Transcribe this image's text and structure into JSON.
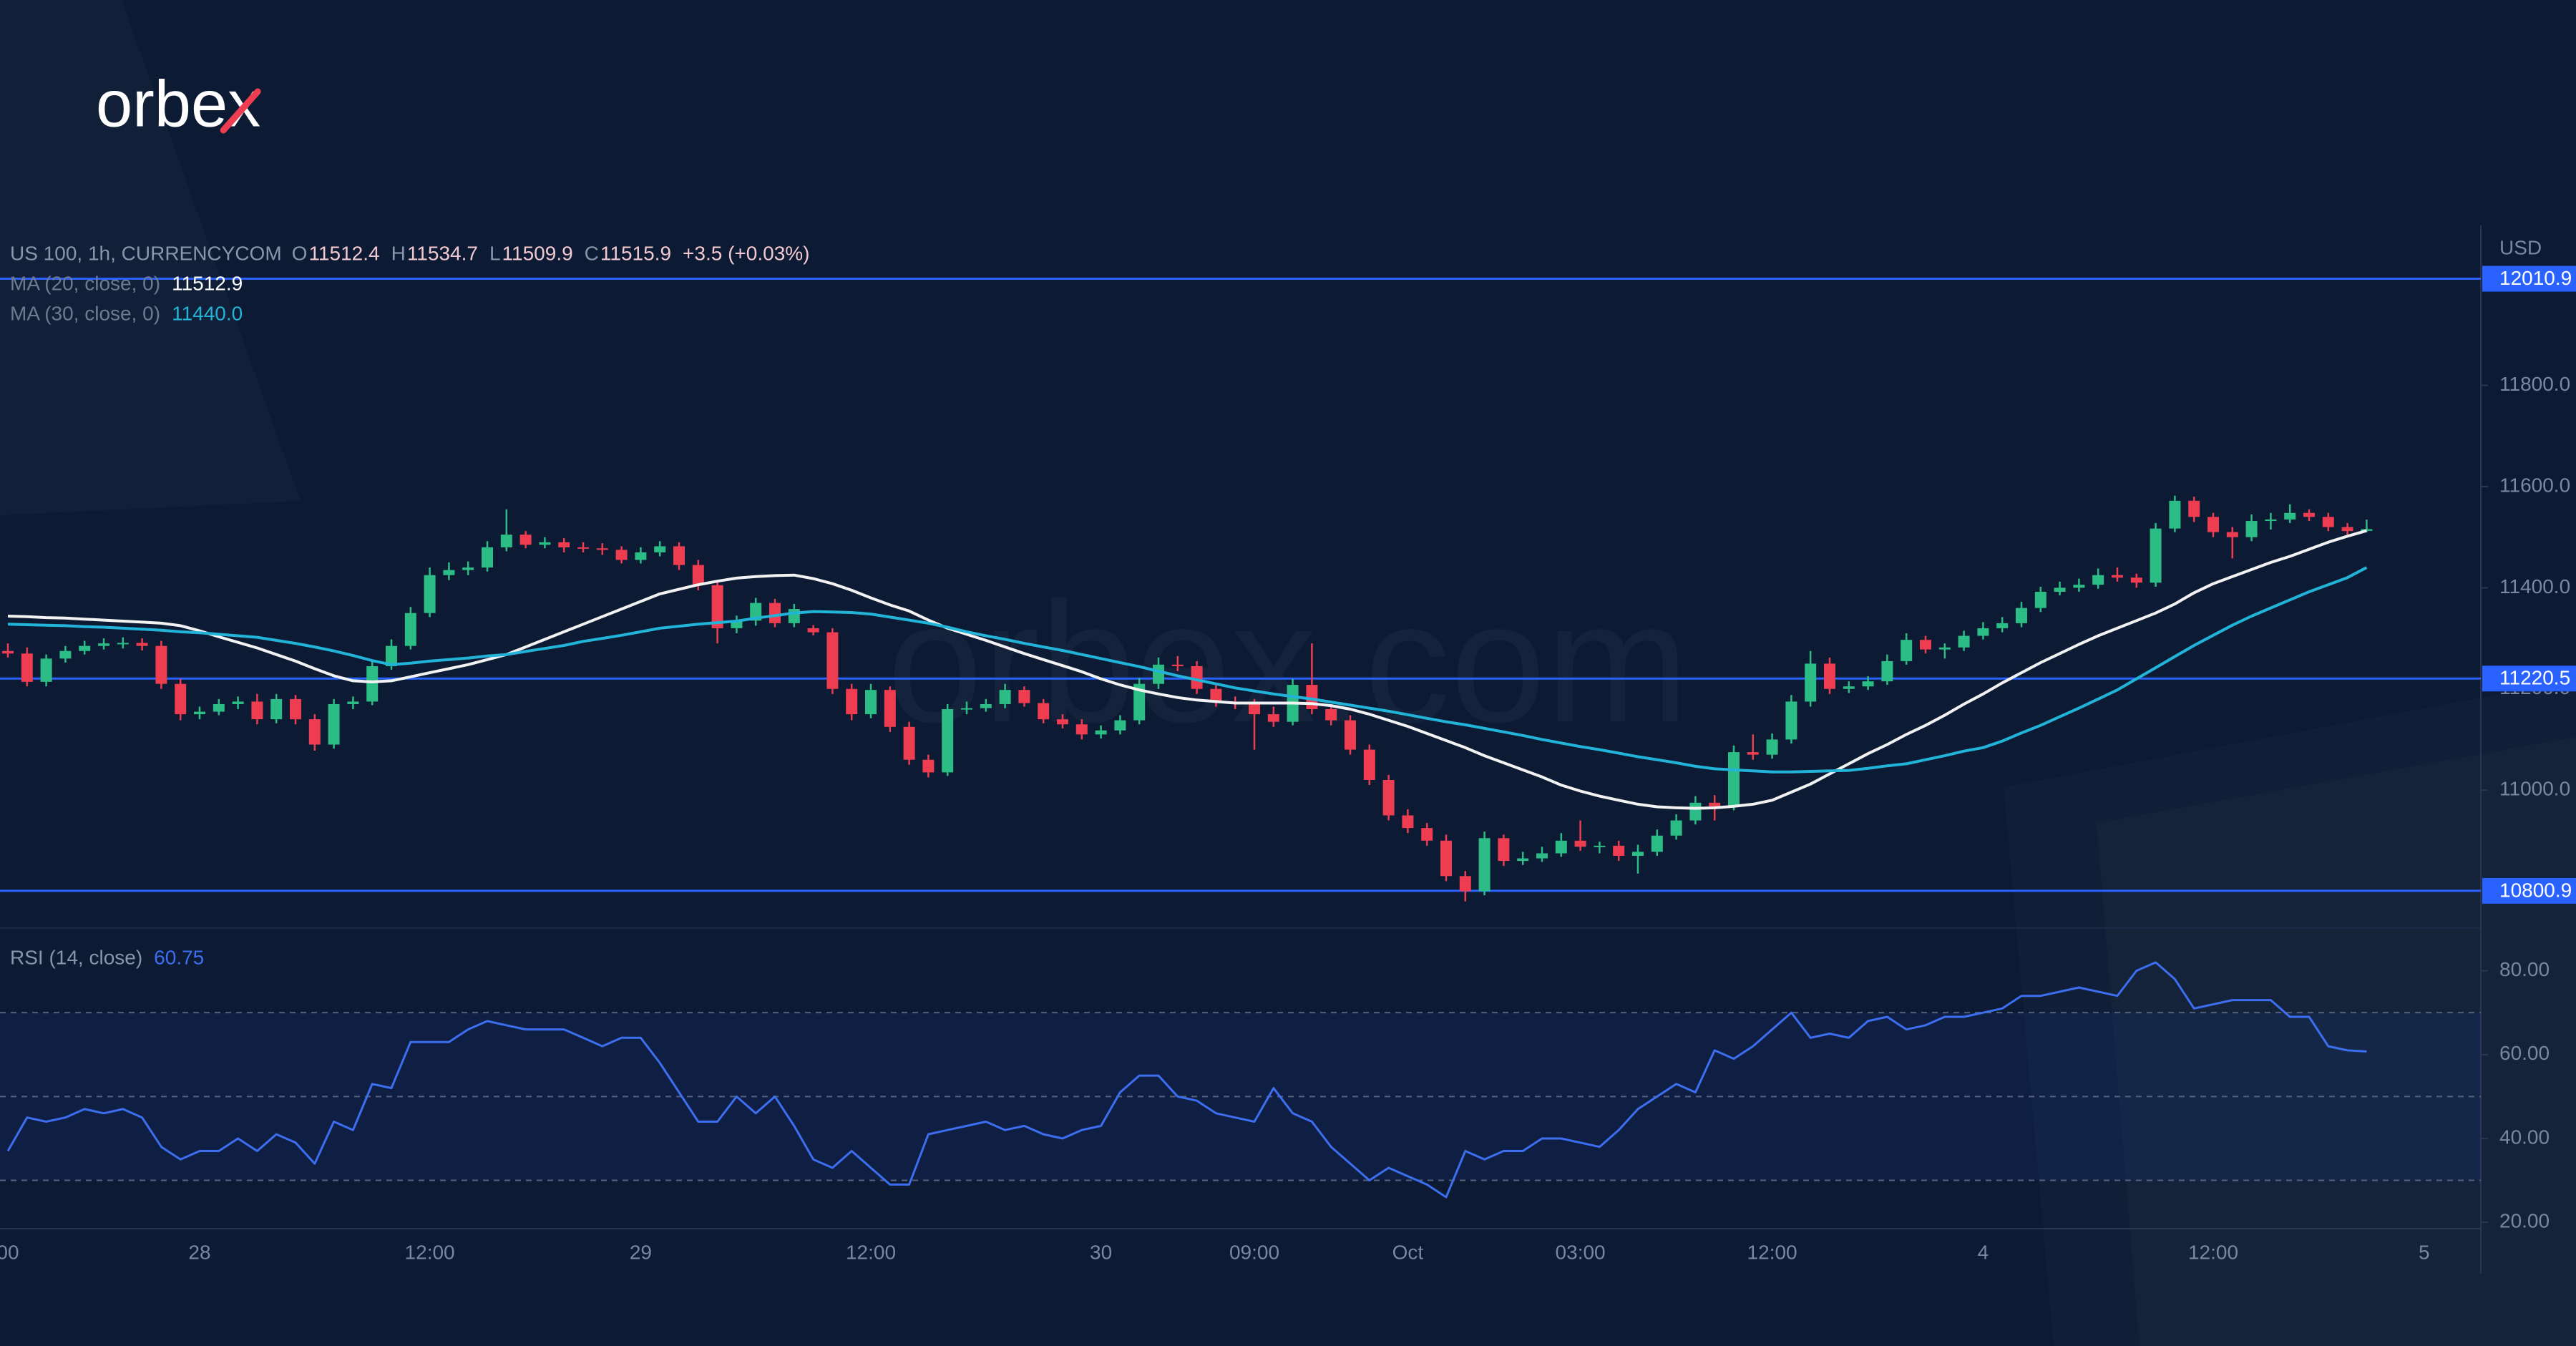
{
  "brand": "orbex",
  "watermark": "orbex.com",
  "chart_data": {
    "type": "candlestick",
    "symbol": "US 100, 1h, CURRENCYCOM",
    "ohlc_letters": [
      "O",
      "H",
      "L",
      "C"
    ],
    "change": "+3.5 (+0.03%)",
    "up_color": "#2bbd85",
    "down_color": "#ee3d50",
    "y_axis_label": "USD",
    "ylim": [
      10730,
      12105
    ],
    "yticks": [
      {
        "value": 11000,
        "label": "11000.0"
      },
      {
        "value": 11200,
        "label": "11200.0"
      },
      {
        "value": 11400,
        "label": "11400.0"
      },
      {
        "value": 11600,
        "label": "11600.0"
      },
      {
        "value": 11800,
        "label": "11800.0"
      }
    ],
    "levels": [
      12010.9,
      11220.5,
      10800.9
    ],
    "level_color": "#2962ff",
    "categories": [
      "00",
      null,
      null,
      null,
      null,
      null,
      null,
      null,
      null,
      null,
      "28",
      null,
      null,
      null,
      null,
      null,
      null,
      null,
      null,
      null,
      null,
      null,
      "12:00",
      null,
      null,
      null,
      null,
      null,
      null,
      null,
      null,
      null,
      null,
      "29",
      null,
      null,
      null,
      null,
      null,
      null,
      null,
      null,
      null,
      null,
      null,
      "12:00",
      null,
      null,
      null,
      null,
      null,
      null,
      null,
      null,
      null,
      null,
      null,
      "30",
      null,
      null,
      null,
      null,
      null,
      null,
      null,
      "09:00",
      null,
      null,
      null,
      null,
      null,
      null,
      null,
      "Oct",
      null,
      null,
      null,
      null,
      null,
      null,
      null,
      null,
      "03:00",
      null,
      null,
      null,
      null,
      null,
      null,
      null,
      null,
      null,
      "12:00",
      null,
      null,
      null,
      null,
      null,
      null,
      null,
      null,
      null,
      null,
      "4",
      null,
      null,
      null,
      null,
      null,
      null,
      null,
      null,
      null,
      null,
      null,
      "12:00",
      null,
      null,
      null,
      null,
      null,
      null,
      null,
      null,
      null,
      null,
      "5"
    ],
    "ohlc": [
      [
        11275,
        11290,
        11262,
        11270
      ],
      [
        11270,
        11282,
        11205,
        11214
      ],
      [
        11214,
        11268,
        11205,
        11260
      ],
      [
        11260,
        11285,
        11252,
        11275
      ],
      [
        11275,
        11295,
        11268,
        11285
      ],
      [
        11285,
        11300,
        11278,
        11290
      ],
      [
        11290,
        11302,
        11280,
        11291
      ],
      [
        11291,
        11300,
        11276,
        11285
      ],
      [
        11285,
        11295,
        11200,
        11210
      ],
      [
        11210,
        11220,
        11138,
        11150
      ],
      [
        11150,
        11165,
        11140,
        11155
      ],
      [
        11155,
        11180,
        11148,
        11170
      ],
      [
        11170,
        11185,
        11160,
        11175
      ],
      [
        11175,
        11190,
        11130,
        11140
      ],
      [
        11140,
        11190,
        11132,
        11180
      ],
      [
        11180,
        11188,
        11130,
        11140
      ],
      [
        11140,
        11150,
        11078,
        11090
      ],
      [
        11090,
        11180,
        11082,
        11170
      ],
      [
        11170,
        11185,
        11160,
        11175
      ],
      [
        11175,
        11255,
        11168,
        11245
      ],
      [
        11245,
        11298,
        11238,
        11285
      ],
      [
        11285,
        11362,
        11278,
        11350
      ],
      [
        11350,
        11440,
        11342,
        11425
      ],
      [
        11425,
        11450,
        11415,
        11435
      ],
      [
        11435,
        11452,
        11425,
        11440
      ],
      [
        11440,
        11492,
        11432,
        11480
      ],
      [
        11480,
        11555,
        11472,
        11505
      ],
      [
        11505,
        11512,
        11478,
        11485
      ],
      [
        11485,
        11500,
        11478,
        11490
      ],
      [
        11490,
        11498,
        11470,
        11480
      ],
      [
        11480,
        11490,
        11470,
        11478
      ],
      [
        11478,
        11488,
        11465,
        11475
      ],
      [
        11475,
        11482,
        11448,
        11455
      ],
      [
        11455,
        11480,
        11448,
        11470
      ],
      [
        11470,
        11492,
        11462,
        11482
      ],
      [
        11482,
        11490,
        11435,
        11445
      ],
      [
        11445,
        11455,
        11395,
        11405
      ],
      [
        11405,
        11412,
        11290,
        11320
      ],
      [
        11320,
        11345,
        11310,
        11335
      ],
      [
        11335,
        11380,
        11325,
        11370
      ],
      [
        11370,
        11378,
        11322,
        11330
      ],
      [
        11330,
        11368,
        11322,
        11358
      ],
      [
        11320,
        11326,
        11306,
        11312
      ],
      [
        11312,
        11320,
        11190,
        11200
      ],
      [
        11200,
        11210,
        11138,
        11150
      ],
      [
        11150,
        11210,
        11142,
        11198
      ],
      [
        11198,
        11205,
        11115,
        11125
      ],
      [
        11125,
        11135,
        11050,
        11060
      ],
      [
        11060,
        11070,
        11025,
        11035
      ],
      [
        11035,
        11170,
        11028,
        11160
      ],
      [
        11160,
        11175,
        11150,
        11162
      ],
      [
        11162,
        11180,
        11155,
        11170
      ],
      [
        11170,
        11210,
        11162,
        11198
      ],
      [
        11198,
        11205,
        11165,
        11172
      ],
      [
        11172,
        11180,
        11132,
        11140
      ],
      [
        11140,
        11150,
        11122,
        11130
      ],
      [
        11130,
        11140,
        11100,
        11110
      ],
      [
        11110,
        11128,
        11102,
        11118
      ],
      [
        11118,
        11148,
        11110,
        11138
      ],
      [
        11138,
        11222,
        11130,
        11210
      ],
      [
        11210,
        11262,
        11200,
        11248
      ],
      [
        11248,
        11265,
        11235,
        11245
      ],
      [
        11245,
        11255,
        11190,
        11200
      ],
      [
        11200,
        11210,
        11165,
        11175
      ],
      [
        11175,
        11185,
        11160,
        11170
      ],
      [
        11170,
        11180,
        11080,
        11150
      ],
      [
        11150,
        11165,
        11125,
        11135
      ],
      [
        11135,
        11220,
        11128,
        11208
      ],
      [
        11208,
        11290,
        11150,
        11160
      ],
      [
        11160,
        11170,
        11128,
        11138
      ],
      [
        11138,
        11148,
        11070,
        11080
      ],
      [
        11080,
        11090,
        11010,
        11020
      ],
      [
        11020,
        11030,
        10940,
        10950
      ],
      [
        10950,
        10962,
        10915,
        10925
      ],
      [
        10925,
        10935,
        10890,
        10900
      ],
      [
        10900,
        10912,
        10820,
        10830
      ],
      [
        10830,
        10840,
        10780,
        10800
      ],
      [
        10800,
        10918,
        10792,
        10905
      ],
      [
        10905,
        10912,
        10850,
        10860
      ],
      [
        10860,
        10878,
        10852,
        10865
      ],
      [
        10865,
        10888,
        10858,
        10875
      ],
      [
        10875,
        10915,
        10868,
        10900
      ],
      [
        10900,
        10940,
        10880,
        10888
      ],
      [
        10888,
        10898,
        10875,
        10890
      ],
      [
        10890,
        10900,
        10860,
        10870
      ],
      [
        10870,
        10892,
        10835,
        10878
      ],
      [
        10878,
        10922,
        10870,
        10910
      ],
      [
        10910,
        10952,
        10902,
        10940
      ],
      [
        10940,
        10988,
        10932,
        10975
      ],
      [
        10975,
        10990,
        10940,
        10968
      ],
      [
        10968,
        11088,
        10960,
        11075
      ],
      [
        11075,
        11110,
        11060,
        11070
      ],
      [
        11070,
        11112,
        11062,
        11100
      ],
      [
        11100,
        11188,
        11092,
        11175
      ],
      [
        11175,
        11275,
        11165,
        11250
      ],
      [
        11250,
        11262,
        11190,
        11200
      ],
      [
        11200,
        11215,
        11192,
        11205
      ],
      [
        11205,
        11225,
        11198,
        11215
      ],
      [
        11215,
        11268,
        11208,
        11255
      ],
      [
        11255,
        11310,
        11248,
        11297
      ],
      [
        11297,
        11305,
        11270,
        11278
      ],
      [
        11278,
        11290,
        11260,
        11282
      ],
      [
        11282,
        11315,
        11275,
        11305
      ],
      [
        11305,
        11332,
        11298,
        11320
      ],
      [
        11320,
        11342,
        11312,
        11330
      ],
      [
        11330,
        11372,
        11322,
        11360
      ],
      [
        11360,
        11402,
        11352,
        11392
      ],
      [
        11392,
        11412,
        11385,
        11400
      ],
      [
        11400,
        11418,
        11392,
        11406
      ],
      [
        11406,
        11438,
        11398,
        11425
      ],
      [
        11425,
        11440,
        11412,
        11420
      ],
      [
        11420,
        11428,
        11400,
        11410
      ],
      [
        11410,
        11528,
        11402,
        11517
      ],
      [
        11517,
        11582,
        11510,
        11572
      ],
      [
        11572,
        11580,
        11530,
        11540
      ],
      [
        11540,
        11548,
        11500,
        11510
      ],
      [
        11510,
        11520,
        11458,
        11500
      ],
      [
        11500,
        11545,
        11492,
        11532
      ],
      [
        11532,
        11548,
        11515,
        11535
      ],
      [
        11535,
        11565,
        11528,
        11548
      ],
      [
        11548,
        11555,
        11532,
        11540
      ],
      [
        11540,
        11548,
        11512,
        11520
      ],
      [
        11520,
        11528,
        11505,
        11512
      ],
      [
        11512.4,
        11534.7,
        11509.9,
        11515.9
      ],
      null,
      null,
      null
    ],
    "series": [
      {
        "name": "MA (20, close, 0)",
        "color": "#f2f2f2",
        "values": [
          11344,
          11343,
          11341,
          11340,
          11338,
          11336,
          11334,
          11332,
          11330,
          11325,
          11315,
          11303,
          11292,
          11281,
          11268,
          11255,
          11240,
          11226,
          11216,
          11214,
          11216,
          11224,
          11232,
          11240,
          11248,
          11258,
          11268,
          11283,
          11298,
          11313,
          11328,
          11343,
          11358,
          11373,
          11388,
          11397,
          11406,
          11413,
          11419,
          11422,
          11424,
          11425,
          11418,
          11408,
          11395,
          11380,
          11366,
          11354,
          11336,
          11320,
          11308,
          11296,
          11283,
          11270,
          11258,
          11246,
          11234,
          11220,
          11208,
          11198,
          11190,
          11183,
          11178,
          11175,
          11172,
          11172,
          11172,
          11172,
          11171,
          11167,
          11160,
          11150,
          11138,
          11126,
          11112,
          11098,
          11084,
          11068,
          11054,
          11040,
          11026,
          11010,
          10998,
          10988,
          10980,
          10972,
          10967,
          10965,
          10964,
          10965,
          10968,
          10972,
          10980,
          10996,
          11012,
          11032,
          11052,
          11072,
          11090,
          11110,
          11128,
          11148,
          11170,
          11190,
          11212,
          11232,
          11252,
          11270,
          11288,
          11305,
          11320,
          11335,
          11350,
          11368,
          11390,
          11408,
          11422,
          11436,
          11450,
          11462,
          11476,
          11490,
          11502,
          11512.9,
          null,
          null,
          null
        ]
      },
      {
        "name": "MA (30, close, 0)",
        "color": "#22b4d8",
        "legend_value": {
          "value": 11440,
          "label": "11440.0"
        },
        "values": [
          11328,
          11327,
          11326,
          11325,
          11323,
          11322,
          11320,
          11318,
          11316,
          11313,
          11311,
          11308,
          11305,
          11302,
          11296,
          11290,
          11283,
          11275,
          11266,
          11256,
          11248,
          11251,
          11255,
          11258,
          11261,
          11265,
          11268,
          11274,
          11280,
          11286,
          11294,
          11300,
          11306,
          11313,
          11320,
          11324,
          11328,
          11331,
          11334,
          11340,
          11345,
          11350,
          11353,
          11352,
          11351,
          11348,
          11342,
          11336,
          11330,
          11322,
          11313,
          11305,
          11298,
          11290,
          11283,
          11276,
          11268,
          11260,
          11252,
          11244,
          11235,
          11226,
          11218,
          11210,
          11202,
          11196,
          11190,
          11185,
          11180,
          11174,
          11168,
          11162,
          11156,
          11149,
          11142,
          11135,
          11129,
          11122,
          11115,
          11108,
          11100,
          11093,
          11086,
          11080,
          11073,
          11066,
          11060,
          11054,
          11047,
          11042,
          11040,
          11038,
          11036,
          11036,
          11037,
          11038,
          11039,
          11043,
          11048,
          11052,
          11060,
          11068,
          11077,
          11084,
          11097,
          11113,
          11128,
          11145,
          11162,
          11180,
          11198,
          11220,
          11242,
          11264,
          11286,
          11306,
          11326,
          11344,
          11360,
          11376,
          11392,
          11406,
          11420,
          11440,
          null,
          null,
          null
        ]
      }
    ],
    "rsi": {
      "name": "RSI (14, close)",
      "color": "#3d6ef0",
      "ylim": [
        19,
        90
      ],
      "yticks": [
        {
          "value": 20,
          "label": "20.00"
        },
        {
          "value": 40,
          "label": "40.00"
        },
        {
          "value": 60,
          "label": "60.00"
        },
        {
          "value": 80,
          "label": "80.00"
        }
      ],
      "bands": [
        30,
        50,
        70
      ],
      "values": [
        37,
        45,
        44,
        45,
        47,
        46,
        47,
        45,
        38,
        35,
        37,
        37,
        40,
        37,
        41,
        39,
        34,
        44,
        42,
        53,
        52,
        63,
        63,
        63,
        66,
        68,
        67,
        66,
        66,
        66,
        64,
        62,
        64,
        64,
        58,
        51,
        44,
        44,
        50,
        46,
        50,
        43,
        35,
        33,
        37,
        33,
        29,
        29,
        41,
        42,
        43,
        44,
        42,
        43,
        41,
        40,
        42,
        43,
        51,
        55,
        55,
        50,
        49,
        46,
        45,
        44,
        52,
        46,
        44,
        38,
        34,
        30,
        33,
        31,
        29,
        26,
        37,
        35,
        37,
        37,
        40,
        40,
        39,
        38,
        42,
        47,
        50,
        53,
        51,
        61,
        59,
        62,
        66,
        70,
        64,
        65,
        64,
        68,
        69,
        66,
        67,
        69,
        69,
        70,
        71,
        74,
        74,
        75,
        76,
        75,
        74,
        80,
        82,
        78,
        71,
        72,
        73,
        73,
        73,
        69,
        69,
        62,
        61,
        60.75,
        null,
        null,
        null
      ]
    }
  }
}
